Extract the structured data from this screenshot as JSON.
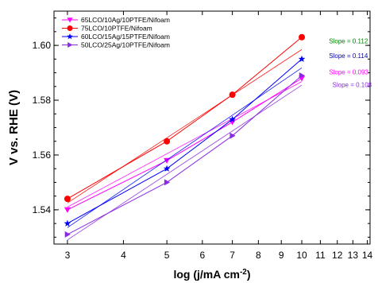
{
  "chart_data": {
    "type": "scatter",
    "xlabel": "log (j/mA cm",
    "xlabel_sup": "-2",
    "xlabel_close": ")",
    "ylabel": "V vs. RHE (V)",
    "xscale": "log",
    "xlim": [
      2.8,
      14.2
    ],
    "ylim": [
      1.5275,
      1.6125
    ],
    "x_ticks": [
      3,
      4,
      5,
      6,
      7,
      8,
      9,
      10,
      11,
      12,
      13,
      14
    ],
    "x_tick_labels": [
      "3",
      "4",
      "5",
      "6",
      "7",
      "8",
      "9",
      "10",
      "11",
      "12",
      "13",
      "14"
    ],
    "y_ticks": [
      1.54,
      1.56,
      1.58,
      1.6
    ],
    "y_tick_labels": [
      "1.54",
      "1.56",
      "1.58",
      "1.60"
    ],
    "grid": false,
    "legend_position": "top-left",
    "series": [
      {
        "name": "65LCO/10Ag/10PTFE/Nifoam",
        "marker": "triangle-down",
        "color": "#ff00ff",
        "x": [
          3,
          5,
          7,
          10
        ],
        "y": [
          1.54,
          1.558,
          1.572,
          1.588
        ],
        "fit": [
          1.541,
          1.5868
        ]
      },
      {
        "name": "75LCO/10PTFE/Nifoam",
        "marker": "circle",
        "color": "#ff0000",
        "x": [
          3,
          5,
          7,
          10
        ],
        "y": [
          1.544,
          1.565,
          1.582,
          1.603
        ],
        "fit": [
          1.5425,
          1.5985
        ]
      },
      {
        "name": "60LCO/15Ag/15PTFE/Nifoam",
        "marker": "star",
        "color": "#0000ff",
        "x": [
          3,
          5,
          7,
          10
        ],
        "y": [
          1.535,
          1.555,
          1.573,
          1.595
        ],
        "fit": [
          1.5335,
          1.5918
        ]
      },
      {
        "name": "50LCO/25Ag/10PTFE/Nifoam",
        "marker": "triangle-right",
        "color": "#8a2be2",
        "x": [
          3,
          5,
          7,
          10
        ],
        "y": [
          1.531,
          1.55,
          1.567,
          1.589
        ],
        "fit": [
          1.529,
          1.5855
        ]
      }
    ],
    "annotations": [
      {
        "text": "Slope = 0.112",
        "color": "#008000",
        "x": 11.5,
        "y": 1.6008
      },
      {
        "text": "Slope = 0.114",
        "color": "#0000a0",
        "x": 11.5,
        "y": 1.5954
      },
      {
        "text": "Slope = 0.093",
        "color": "#ff00ff",
        "x": 11.5,
        "y": 1.5894
      },
      {
        "text": "Slope = 0.108",
        "color": "#8a2be2",
        "x": 11.7,
        "y": 1.5848
      }
    ]
  }
}
